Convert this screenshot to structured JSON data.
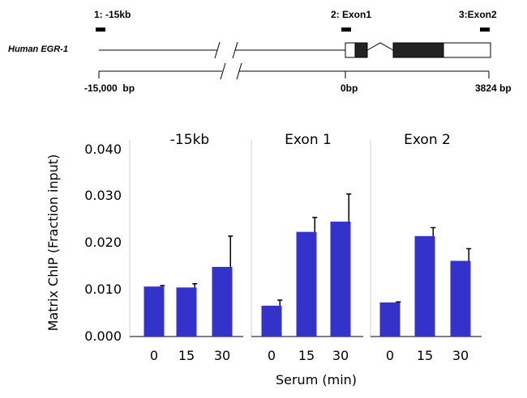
{
  "diagram": {
    "gene_name": "Human EGR-1",
    "regions": [
      {
        "label": "1: -15kb"
      },
      {
        "label": "2: Exon1"
      },
      {
        "label": "3:Exon2"
      }
    ],
    "scale_labels": [
      "-15,000  bp",
      "0bp",
      "3824 bp"
    ]
  },
  "chart_data": {
    "type": "bar",
    "ylabel": "Matrix ChIP (Fraction input)",
    "xlabel": "Serum (min)",
    "ylim": [
      0,
      0.04
    ],
    "yticks": [
      "0.000",
      "0.010",
      "0.020",
      "0.030",
      "0.040"
    ],
    "ytick_values": [
      0,
      0.01,
      0.02,
      0.03,
      0.04
    ],
    "bar_color": "#3333cc",
    "panels": [
      {
        "title": "-15kb",
        "categories": [
          "0",
          "15",
          "30"
        ],
        "values": [
          0.0107,
          0.0105,
          0.0149
        ],
        "errors": [
          0.0002,
          0.0008,
          0.0066
        ]
      },
      {
        "title": "Exon 1",
        "categories": [
          "0",
          "15",
          "30"
        ],
        "values": [
          0.0066,
          0.0224,
          0.0246
        ],
        "errors": [
          0.0012,
          0.0031,
          0.0059
        ]
      },
      {
        "title": "Exon 2",
        "categories": [
          "0",
          "15",
          "30"
        ],
        "values": [
          0.0073,
          0.0215,
          0.0162
        ],
        "errors": [
          0.0001,
          0.0018,
          0.0026
        ]
      }
    ]
  }
}
